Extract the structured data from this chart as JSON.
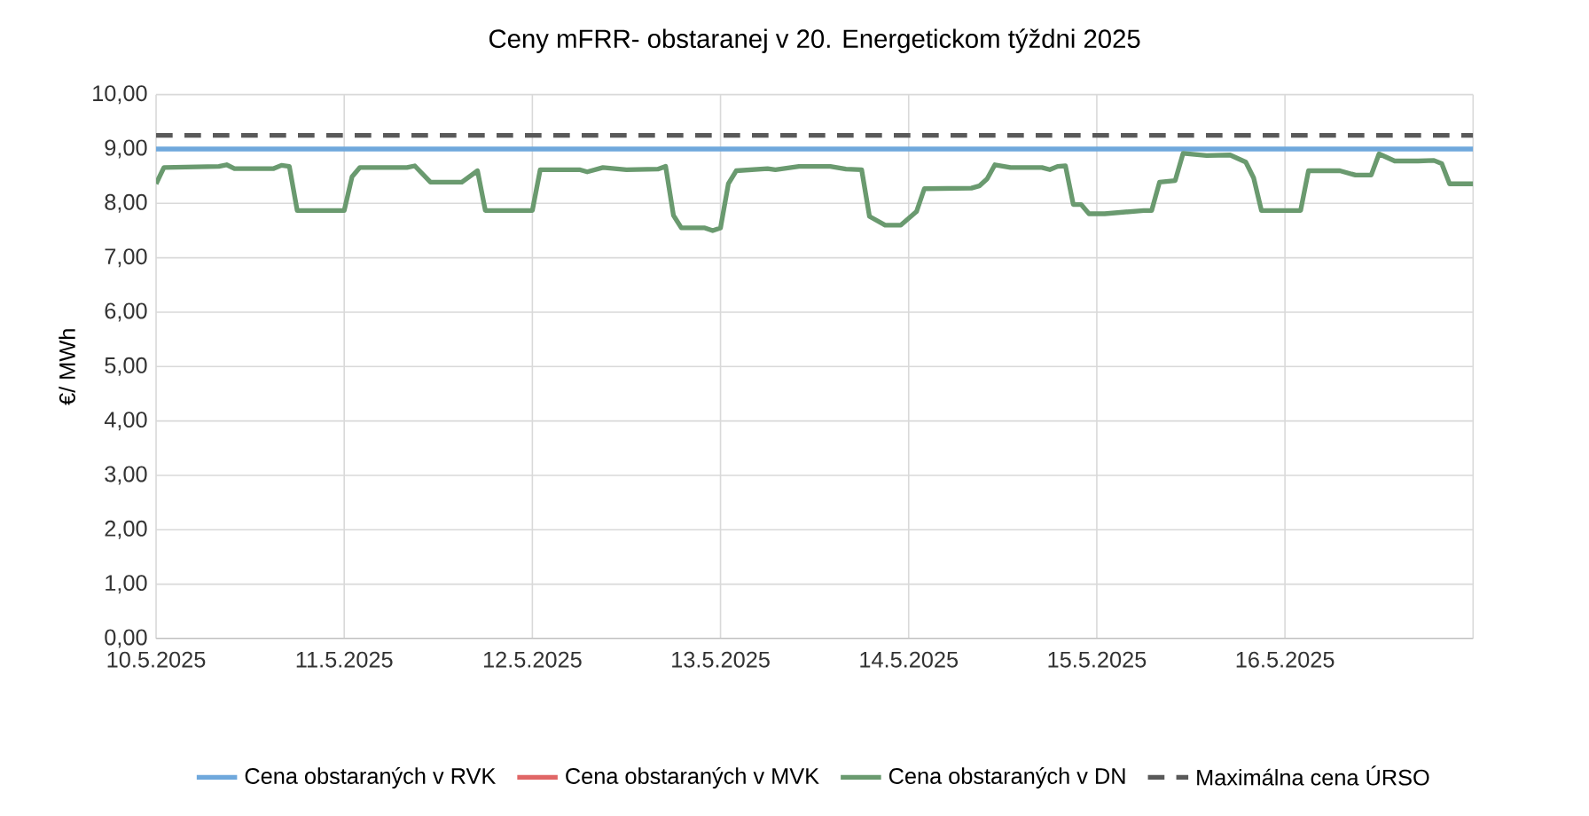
{
  "chart_data": {
    "type": "line",
    "title": "Ceny mFRR- obstaranej v 20. Energetickom týždni 2025",
    "ylabel": "€/ MWh",
    "xlim": [
      "2025-05-10T00:00",
      "2025-05-17T00:00"
    ],
    "xticks": [
      {
        "value": "2025-05-10",
        "label": "10.5.2025"
      },
      {
        "value": "2025-05-11",
        "label": "11.5.2025"
      },
      {
        "value": "2025-05-12",
        "label": "12.5.2025"
      },
      {
        "value": "2025-05-13",
        "label": "13.5.2025"
      },
      {
        "value": "2025-05-14",
        "label": "14.5.2025"
      },
      {
        "value": "2025-05-15",
        "label": "15.5.2025"
      },
      {
        "value": "2025-05-16",
        "label": "16.5.2025"
      },
      {
        "value": "2025-05-17",
        "label": null
      }
    ],
    "ylim": [
      0,
      10
    ],
    "yticks": [
      {
        "value": 0,
        "label": "0,00"
      },
      {
        "value": 1,
        "label": "1,00"
      },
      {
        "value": 2,
        "label": "2,00"
      },
      {
        "value": 3,
        "label": "3,00"
      },
      {
        "value": 4,
        "label": "4,00"
      },
      {
        "value": 5,
        "label": "5,00"
      },
      {
        "value": 6,
        "label": "6,00"
      },
      {
        "value": 7,
        "label": "7,00"
      },
      {
        "value": 8,
        "label": "8,00"
      },
      {
        "value": 9,
        "label": "9,00"
      },
      {
        "value": 10,
        "label": "10,00"
      }
    ],
    "grid": true,
    "legend": "bottom",
    "marker": "none",
    "series": [
      {
        "name": "Cena obstaraných v RVK",
        "color": "#6fa8dc",
        "line_style": "solid",
        "x": [
          "2025-05-10T00:00",
          "2025-05-17T00:00"
        ],
        "values": [
          9.0,
          9.0
        ]
      },
      {
        "name": "Cena obstaraných v MVK",
        "color": "#e06666",
        "line_style": "solid"
      },
      {
        "name": "Cena obstaraných v DN",
        "color": "#6a9a6f",
        "line_style": "solid",
        "x": [
          "2025-05-10T00:00",
          "2025-05-10T01:00",
          "2025-05-10T08:00",
          "2025-05-10T09:00",
          "2025-05-10T10:00",
          "2025-05-10T15:00",
          "2025-05-10T16:00",
          "2025-05-10T17:00",
          "2025-05-10T18:00",
          "2025-05-11T00:00",
          "2025-05-11T01:00",
          "2025-05-11T02:00",
          "2025-05-11T08:00",
          "2025-05-11T09:00",
          "2025-05-11T11:00",
          "2025-05-11T15:00",
          "2025-05-11T17:00",
          "2025-05-11T18:00",
          "2025-05-12T00:00",
          "2025-05-12T01:00",
          "2025-05-12T06:00",
          "2025-05-12T07:00",
          "2025-05-12T09:00",
          "2025-05-12T12:00",
          "2025-05-12T16:00",
          "2025-05-12T17:00",
          "2025-05-12T18:00",
          "2025-05-12T19:00",
          "2025-05-12T22:00",
          "2025-05-12T23:00",
          "2025-05-13T00:00",
          "2025-05-13T01:00",
          "2025-05-13T02:00",
          "2025-05-13T06:00",
          "2025-05-13T07:00",
          "2025-05-13T10:00",
          "2025-05-13T14:00",
          "2025-05-13T16:00",
          "2025-05-13T18:00",
          "2025-05-13T19:00",
          "2025-05-13T21:00",
          "2025-05-13T23:00",
          "2025-05-14T01:00",
          "2025-05-14T02:00",
          "2025-05-14T08:00",
          "2025-05-14T09:00",
          "2025-05-14T10:00",
          "2025-05-14T11:00",
          "2025-05-14T13:00",
          "2025-05-14T17:00",
          "2025-05-14T18:00",
          "2025-05-14T19:00",
          "2025-05-14T20:00",
          "2025-05-14T21:00",
          "2025-05-14T22:00",
          "2025-05-14T23:00",
          "2025-05-15T01:00",
          "2025-05-15T06:00",
          "2025-05-15T07:00",
          "2025-05-15T08:00",
          "2025-05-15T10:00",
          "2025-05-15T11:00",
          "2025-05-15T14:00",
          "2025-05-15T17:00",
          "2025-05-15T19:00",
          "2025-05-15T20:00",
          "2025-05-15T21:00",
          "2025-05-16T02:00",
          "2025-05-16T03:00",
          "2025-05-16T07:00",
          "2025-05-16T09:00",
          "2025-05-16T11:00",
          "2025-05-16T12:00",
          "2025-05-16T14:00",
          "2025-05-16T17:00",
          "2025-05-16T19:00",
          "2025-05-16T20:00",
          "2025-05-16T21:00",
          "2025-05-17T00:00"
        ],
        "values": [
          8.36,
          8.66,
          8.68,
          8.71,
          8.64,
          8.64,
          8.7,
          8.68,
          7.87,
          7.87,
          8.49,
          8.66,
          8.66,
          8.69,
          8.39,
          8.39,
          8.6,
          7.87,
          7.87,
          8.62,
          8.62,
          8.58,
          8.66,
          8.62,
          8.63,
          8.68,
          7.78,
          7.55,
          7.55,
          7.5,
          7.55,
          8.36,
          8.6,
          8.64,
          8.62,
          8.68,
          8.68,
          8.63,
          8.62,
          7.76,
          7.6,
          7.6,
          7.85,
          8.27,
          8.28,
          8.32,
          8.45,
          8.71,
          8.66,
          8.66,
          8.62,
          8.68,
          8.69,
          7.98,
          7.98,
          7.81,
          7.81,
          7.87,
          7.87,
          8.39,
          8.42,
          8.92,
          8.88,
          8.89,
          8.76,
          8.47,
          7.87,
          7.87,
          8.6,
          8.6,
          8.52,
          8.52,
          8.91,
          8.78,
          8.78,
          8.79,
          8.73,
          8.36,
          8.36
        ]
      },
      {
        "name": "Maximálna cena ÚRSO",
        "color": "#595959",
        "line_style": "dashed",
        "x": [
          "2025-05-10T00:00",
          "2025-05-17T00:00"
        ],
        "values": [
          9.25,
          9.25
        ]
      }
    ]
  }
}
